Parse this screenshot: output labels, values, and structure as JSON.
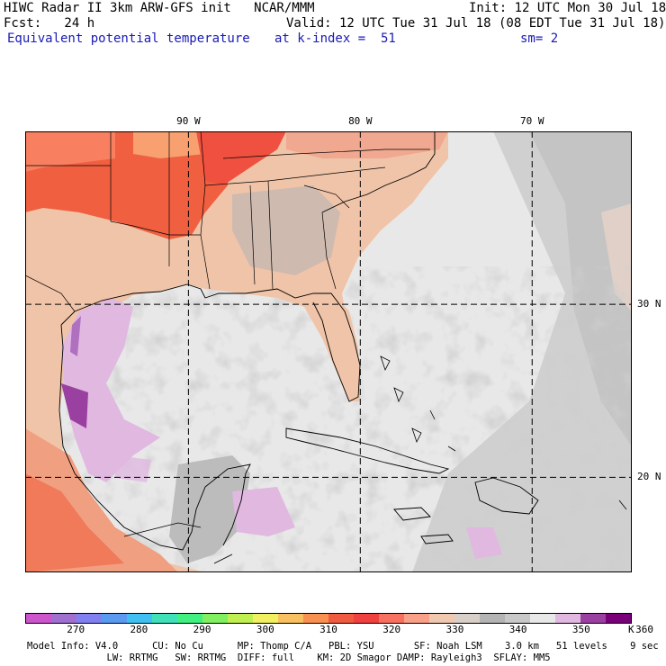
{
  "header": {
    "line1_left": "HIWC Radar II 3km ARW-GFS init   NCAR/MMM",
    "line1_right": "Init: 12 UTC Mon 30 Jul 18",
    "line2_left": "Fcst:   24 h",
    "line2_right": "Valid: 12 UTC Tue 31 Jul 18 (08 EDT Tue 31 Jul 18)",
    "field_name": "Equivalent potential temperature",
    "level": "at k-index =  51",
    "smoothing": "sm= 2"
  },
  "map": {
    "lon_labels": [
      "90 W",
      "80 W",
      "70 W"
    ],
    "lat_labels": [
      "30 N",
      "20 N"
    ],
    "lon_range": [
      -99.5,
      -64.2
    ],
    "lat_range": [
      14.5,
      40.0
    ],
    "grid_lon": [
      -90,
      -80,
      -70
    ],
    "grid_lat": [
      30,
      20
    ]
  },
  "colorbar": {
    "colors": [
      "#cc55cc",
      "#a070d0",
      "#8080f0",
      "#5a9af0",
      "#40c0f0",
      "#40e0b8",
      "#40f080",
      "#80f060",
      "#c0f050",
      "#f0f060",
      "#f8c060",
      "#f89050",
      "#f05a40",
      "#f04040",
      "#f87060",
      "#f8a088",
      "#f0c8b0",
      "#d8d0c8",
      "#b4b4b4",
      "#c8c8c8",
      "#e8e8e8",
      "#e0b8e0",
      "#9a40a0",
      "#780078"
    ],
    "tick_labels": [
      "270",
      "280",
      "290",
      "300",
      "310",
      "320",
      "330",
      "340",
      "350",
      "360"
    ],
    "tick_values": [
      270,
      280,
      290,
      300,
      310,
      320,
      330,
      340,
      350,
      360
    ],
    "min": 262,
    "step": 4,
    "unit": "K"
  },
  "footer": {
    "line1": "Model Info: V4.0      CU: No Cu      MP: Thomp C/A   PBL: YSU       SF: Noah LSM    3.0 km   51 levels    9 sec",
    "line2": "              LW: RRTMG   SW: RRTMG  DIFF: full    KM: 2D Smagor DAMP: Rayleigh3  SFLAY: MM5"
  }
}
